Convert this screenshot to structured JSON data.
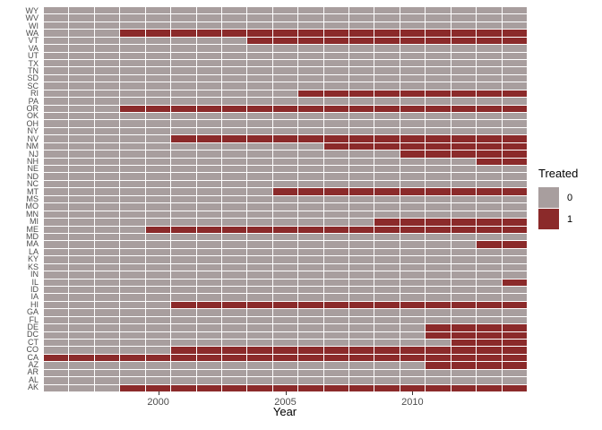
{
  "chart_data": {
    "type": "heatmap",
    "title": "",
    "xlabel": "Year",
    "ylabel": "",
    "x_ticks": [
      2000,
      2005,
      2010
    ],
    "years": [
      1996,
      1997,
      1998,
      1999,
      2000,
      2001,
      2002,
      2003,
      2004,
      2005,
      2006,
      2007,
      2008,
      2009,
      2010,
      2011,
      2012,
      2013,
      2014
    ],
    "states_top_to_bottom": [
      "WY",
      "WV",
      "WI",
      "WA",
      "VT",
      "VA",
      "UT",
      "TX",
      "TN",
      "SD",
      "SC",
      "RI",
      "PA",
      "OR",
      "OK",
      "OH",
      "NY",
      "NV",
      "NM",
      "NJ",
      "NH",
      "NE",
      "ND",
      "NC",
      "MT",
      "MS",
      "MO",
      "MN",
      "MI",
      "ME",
      "MD",
      "MA",
      "LA",
      "KY",
      "KS",
      "IN",
      "IL",
      "ID",
      "IA",
      "HI",
      "GA",
      "FL",
      "DE",
      "DC",
      "CT",
      "CO",
      "CA",
      "AZ",
      "AR",
      "AL",
      "AK"
    ],
    "treatment_start_year": {
      "WA": 1999,
      "VT": 2004,
      "RI": 2006,
      "OR": 1999,
      "NV": 2001,
      "NM": 2007,
      "NJ": 2010,
      "NH": 2013,
      "MT": 2005,
      "MI": 2009,
      "ME": 2000,
      "MA": 2013,
      "IL": 2014,
      "HI": 2001,
      "DE": 2011,
      "DC": 2011,
      "CT": 2012,
      "CO": 2001,
      "CA": 1996,
      "AZ": 2011,
      "AK": 1999
    },
    "legend": {
      "title": "Treated",
      "entries": [
        {
          "label": "0",
          "value": 0,
          "color": "#A89E9E"
        },
        {
          "label": "1",
          "value": 1,
          "color": "#8B2A2A"
        }
      ]
    },
    "colors": {
      "untreated": "#A89E9E",
      "treated": "#8B2A2A",
      "grid_line": "#FFFFFF"
    },
    "layout": {
      "grid": "white tile borders",
      "legend_position": "right",
      "x_range": [
        1995.5,
        2014.5
      ]
    }
  }
}
